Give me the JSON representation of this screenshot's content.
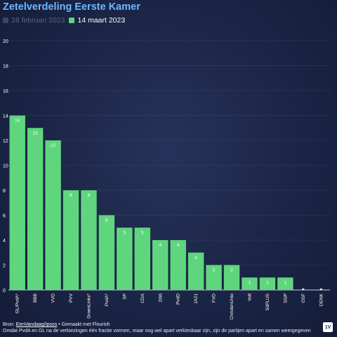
{
  "title": "Zetelverdeling Eerste Kamer",
  "legend": [
    {
      "label": "28 februari 2023",
      "color": "#3d4560",
      "active": false
    },
    {
      "label": "14 maart 2023",
      "color": "#5fd67e",
      "active": true
    }
  ],
  "footer": {
    "source_prefix": "Bron: ",
    "source_link": "EenVandaag/Ipsos",
    "source_suffix": " • Gemaakt met Flourish",
    "note": "Omdat PvdA en GL na de verkiezingen één fractie vormen, maar nog wel apart verkiesbaar zijn, zijn de partijen apart en samen weergegeven"
  },
  "logo_text": "1V",
  "chart_data": {
    "type": "bar",
    "title": "Zetelverdeling Eerste Kamer",
    "xlabel": "",
    "ylabel": "",
    "ylim": [
      0,
      20
    ],
    "yticks": [
      0,
      2,
      4,
      6,
      8,
      10,
      12,
      14,
      16,
      18,
      20
    ],
    "grid": true,
    "bar_color": "#5fd67e",
    "categories": [
      "GL/PvdA*",
      "BBB",
      "VVD",
      "PVV",
      "GroenLinks*",
      "PvdA*",
      "SP",
      "CDA",
      "D66",
      "PvdD",
      "JA21",
      "FVD",
      "ChristenUnie",
      "Volt",
      "50PLUS",
      "SGP",
      "OSF",
      "DENK"
    ],
    "values": [
      14,
      13,
      12,
      8,
      8,
      6,
      5,
      5,
      4,
      4,
      3,
      2,
      2,
      1,
      1,
      1,
      0,
      0
    ],
    "value_labels": [
      "14",
      "13",
      "12",
      "8",
      "8",
      "6",
      "5",
      "5",
      "4",
      "4",
      "3",
      "2",
      "2",
      "1",
      "1",
      "1",
      "",
      ""
    ]
  }
}
